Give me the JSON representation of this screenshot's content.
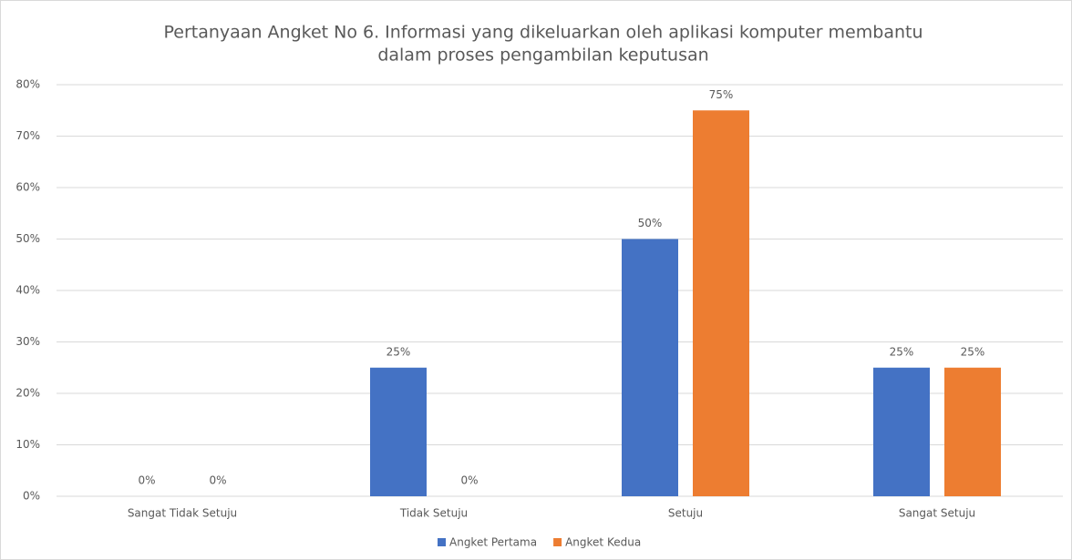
{
  "chart_data": {
    "type": "bar",
    "title": [
      "Pertanyaan Angket No 6. Informasi yang dikeluarkan oleh aplikasi komputer membantu",
      "dalam proses pengambilan keputusan"
    ],
    "categories": [
      "Sangat Tidak Setuju",
      "Tidak Setuju",
      "Setuju",
      "Sangat Setuju"
    ],
    "series": [
      {
        "name": "Angket Pertama",
        "color": "#4472c4",
        "values": [
          0,
          25,
          50,
          25
        ],
        "value_labels": [
          "0%",
          "25%",
          "50%",
          "25%"
        ]
      },
      {
        "name": "Angket Kedua",
        "color": "#ed7d31",
        "values": [
          0,
          0,
          75,
          25
        ],
        "value_labels": [
          "0%",
          "0%",
          "75%",
          "25%"
        ]
      }
    ],
    "ylim": [
      0,
      80
    ],
    "yticks": [
      {
        "value": 0,
        "label": "0%"
      },
      {
        "value": 10,
        "label": "10%"
      },
      {
        "value": 20,
        "label": "20%"
      },
      {
        "value": 30,
        "label": "30%"
      },
      {
        "value": 40,
        "label": "40%"
      },
      {
        "value": 50,
        "label": "50%"
      },
      {
        "value": 60,
        "label": "60%"
      },
      {
        "value": 70,
        "label": "70%"
      },
      {
        "value": 80,
        "label": "80%"
      }
    ],
    "grid": true,
    "legend": "bottom"
  }
}
